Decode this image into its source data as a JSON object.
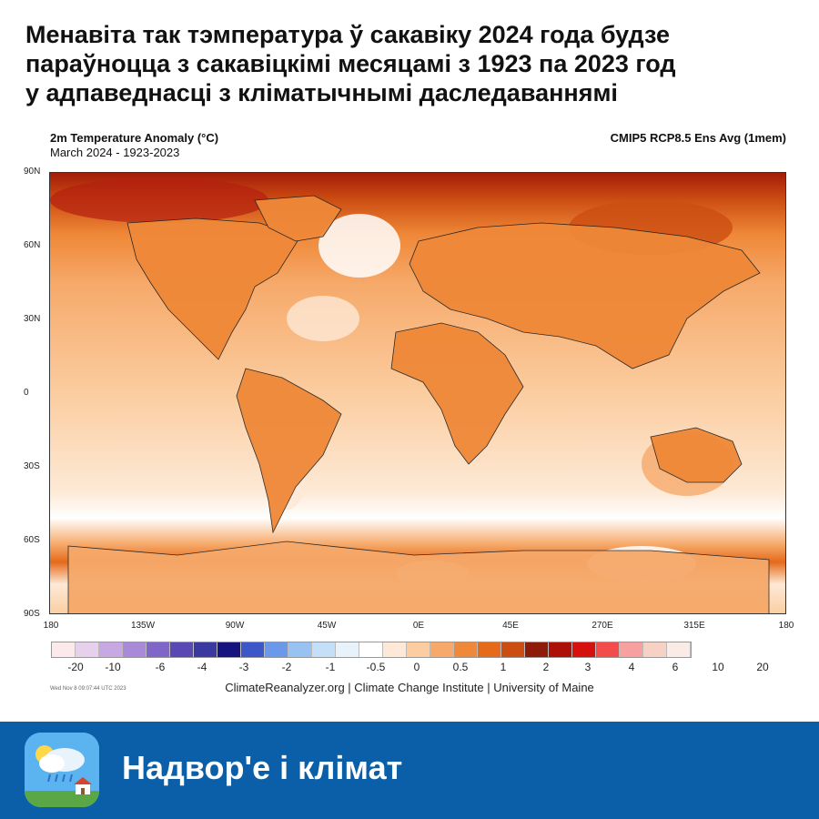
{
  "headline": {
    "lines": [
      "Менавіта так тэмпература ў сакавіку 2024 года будзе",
      "параўноцца з сакавіцкімі месяцамі з 1923 па 2023 год",
      "у адпаведнасці з кліматычнымі даследаваннямі"
    ]
  },
  "map": {
    "title": "2m Temperature Anomaly (°C)",
    "subtitle": "March 2024 - 1923-2023",
    "model": "CMIP5 RCP8.5 Ens Avg (1mem)",
    "lat_labels": [
      "90N",
      "60N",
      "30N",
      "0",
      "30S",
      "60S",
      "90S"
    ],
    "lon_labels": [
      "180",
      "135W",
      "90W",
      "45W",
      "0E",
      "45E",
      "270E",
      "315E",
      "180"
    ],
    "legend": {
      "colors": [
        "#fbe9ec",
        "#e6d0ec",
        "#c8a8e2",
        "#a98ad8",
        "#7f66c8",
        "#5a49b4",
        "#3a39a0",
        "#16147f",
        "#3d56c8",
        "#6b98e8",
        "#98c2f2",
        "#c4dff8",
        "#e8f2fb",
        "#ffffff",
        "#fde9d6",
        "#fbcda0",
        "#f6a96a",
        "#ef8838",
        "#e56a1a",
        "#cc4d12",
        "#8e1a09",
        "#ac1008",
        "#d60f0f",
        "#f34c4c",
        "#f6a0a0",
        "#f7d2c4",
        "#fbebe6"
      ],
      "labels": [
        "-20",
        "-10",
        "-6",
        "-4",
        "-3",
        "-2",
        "-1",
        "-0.5",
        "0",
        "0.5",
        "1",
        "2",
        "3",
        "4",
        "6",
        "10",
        "20"
      ]
    },
    "timestamp": "Wed Nov 8 09:07:44 UTC 2023",
    "credit": "ClimateReanalyzer.org | Climate Change Institute | University of Maine"
  },
  "banner": {
    "app_name": "Надвор'е і клімат",
    "icon": "weather-app-icon"
  }
}
